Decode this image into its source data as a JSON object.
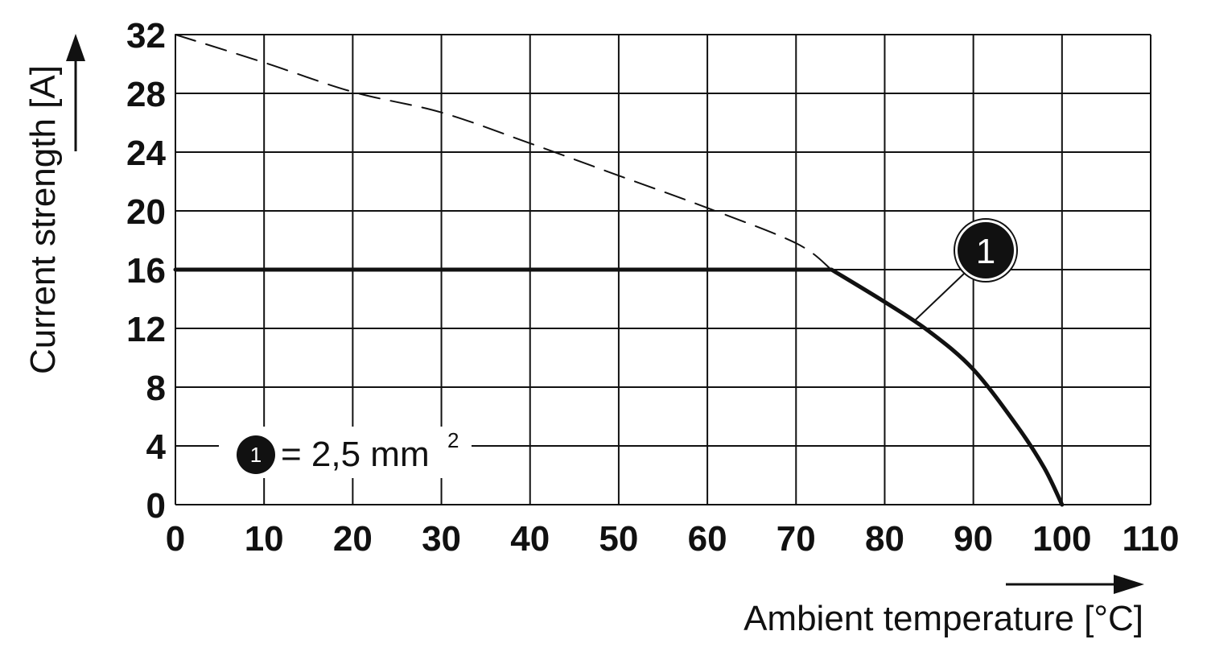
{
  "chart_data": {
    "type": "line",
    "xlabel": "Ambient temperature [°C]",
    "ylabel": "Current strength [A]",
    "xlim": [
      0,
      110
    ],
    "ylim": [
      0,
      32
    ],
    "x_ticks": [
      0,
      10,
      20,
      30,
      40,
      50,
      60,
      70,
      80,
      90,
      100,
      110
    ],
    "y_ticks": [
      0,
      4,
      8,
      12,
      16,
      20,
      24,
      28,
      32
    ],
    "grid": true,
    "series": [
      {
        "style": "dashed",
        "x": [
          0,
          10,
          20,
          30,
          40,
          50,
          60,
          70,
          74
        ],
        "y": [
          32,
          30.1,
          28.1,
          26.7,
          24.6,
          22.4,
          20.2,
          17.8,
          16
        ]
      },
      {
        "name": "1",
        "style": "solid-thick",
        "x": [
          0,
          74,
          80,
          85,
          90,
          95,
          98,
          100
        ],
        "y": [
          16,
          16,
          13.8,
          11.8,
          9.2,
          5.3,
          2.5,
          0
        ]
      }
    ],
    "annotation": {
      "label": "1",
      "series_index": 1,
      "pointing_to_x": 83.5
    },
    "legend": {
      "marker": "1",
      "text": "= 2,5 mm",
      "superscript": "2",
      "placement": "bottom-left"
    }
  }
}
